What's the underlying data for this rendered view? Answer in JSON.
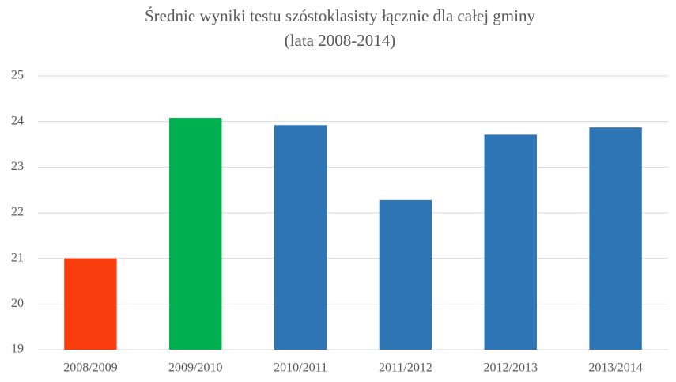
{
  "chart_data": {
    "type": "bar",
    "title": "Średnie wyniki  testu szóstoklasisty łącznie  dla całej gminy",
    "subtitle": "(lata 2008-2014)",
    "categories": [
      "2008/2009",
      "2009/2010",
      "2010/2011",
      "2011/2012",
      "2012/2013",
      "2013/2014"
    ],
    "values": [
      21.0,
      24.08,
      23.92,
      22.28,
      23.71,
      23.87
    ],
    "colors": [
      "#f83c0c",
      "#00b050",
      "#2e75b6",
      "#2e75b6",
      "#2e75b6",
      "#2e75b6"
    ],
    "ylim": [
      19,
      25
    ],
    "yticks": [
      19,
      20,
      21,
      22,
      23,
      24,
      25
    ],
    "grid": true
  }
}
